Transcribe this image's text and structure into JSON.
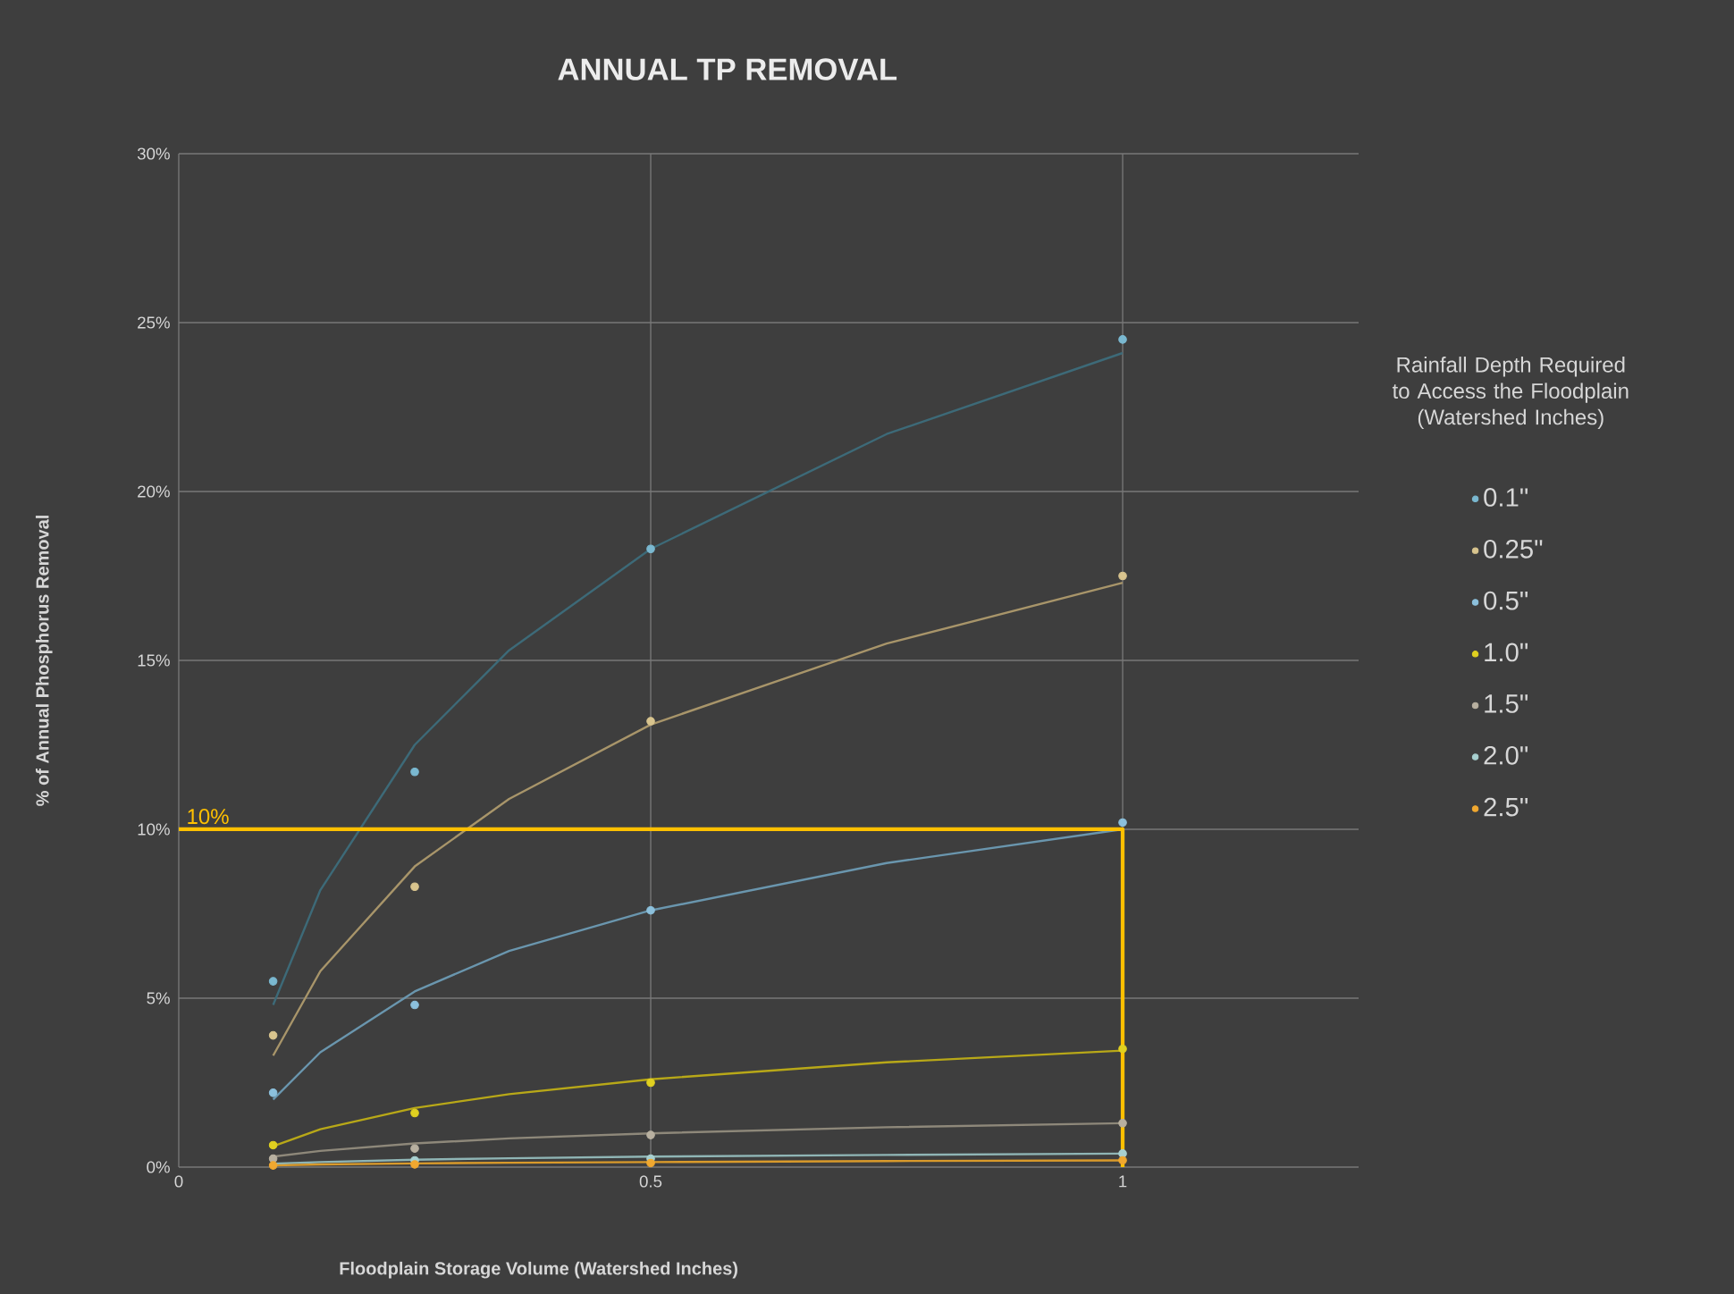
{
  "chart_data": {
    "type": "scatter",
    "title": "ANNUAL TP REMOVAL",
    "xlabel": "Floodplain Storage Volume (Watershed Inches)",
    "ylabel": "% of Annual Phosphorus Removal",
    "legend_title": "Rainfall Depth Required to Access the Floodplain (Watershed Inches)",
    "legend": "right",
    "grid": true,
    "marker": "circle",
    "xlim": [
      0,
      1.25
    ],
    "xticks": [
      0,
      0.5,
      1
    ],
    "ylim": [
      0,
      30
    ],
    "yticks": [
      {
        "value": 0,
        "label": "0%"
      },
      {
        "value": 5,
        "label": "5%"
      },
      {
        "value": 10,
        "label": "10%"
      },
      {
        "value": 15,
        "label": "15%"
      },
      {
        "value": 20,
        "label": "20%"
      },
      {
        "value": 25,
        "label": "25%"
      },
      {
        "value": 30,
        "label": "30%"
      }
    ],
    "annotations": [
      {
        "text": "10%",
        "x": 0,
        "y": 10
      }
    ],
    "series": [
      {
        "type": "line",
        "marker": "none",
        "color": "#3d6a78",
        "x": [
          0.1,
          0.15,
          0.25,
          0.35,
          0.5,
          0.75,
          1
        ],
        "values": [
          4.8,
          8.2,
          12.5,
          15.3,
          18.3,
          21.7,
          24.1
        ]
      },
      {
        "type": "line",
        "marker": "none",
        "color": "#a8956a",
        "x": [
          0.1,
          0.15,
          0.25,
          0.35,
          0.5,
          0.75,
          1
        ],
        "values": [
          3.3,
          5.8,
          8.9,
          10.9,
          13.1,
          15.5,
          17.3
        ]
      },
      {
        "type": "line",
        "marker": "none",
        "color": "#6a96ae",
        "x": [
          0.1,
          0.15,
          0.25,
          0.35,
          0.5,
          0.75,
          1
        ],
        "values": [
          2.0,
          3.4,
          5.2,
          6.4,
          7.6,
          9.0,
          10.0
        ]
      },
      {
        "type": "line",
        "marker": "none",
        "color": "#b8a818",
        "x": [
          0.1,
          0.15,
          0.25,
          0.35,
          0.5,
          0.75,
          1
        ],
        "values": [
          0.62,
          1.12,
          1.75,
          2.16,
          2.6,
          3.1,
          3.45
        ]
      },
      {
        "type": "line",
        "marker": "none",
        "color": "#8e887a",
        "x": [
          0.1,
          0.15,
          0.25,
          0.35,
          0.5,
          0.75,
          1
        ],
        "values": [
          0.31,
          0.48,
          0.7,
          0.85,
          1.0,
          1.18,
          1.3
        ]
      },
      {
        "type": "line",
        "marker": "none",
        "color": "#8fb5b5",
        "x": [
          0.1,
          0.15,
          0.25,
          0.35,
          0.5,
          0.75,
          1
        ],
        "values": [
          0.1,
          0.15,
          0.22,
          0.26,
          0.31,
          0.36,
          0.4
        ]
      },
      {
        "type": "line",
        "marker": "none",
        "color": "#d99a2b",
        "x": [
          0.1,
          0.15,
          0.25,
          0.35,
          0.5,
          0.75,
          1
        ],
        "values": [
          0.05,
          0.08,
          0.11,
          0.13,
          0.15,
          0.18,
          0.2
        ]
      },
      {
        "type": "line",
        "marker": "none",
        "color": "#ffc000",
        "x": [
          0,
          1,
          1
        ],
        "values": [
          10,
          10,
          0
        ]
      },
      {
        "name": "0.1\"",
        "color": "#7ab8d0",
        "x": [
          0.1,
          0.25,
          0.5,
          1
        ],
        "values": [
          5.5,
          11.7,
          18.3,
          24.5
        ]
      },
      {
        "name": "0.25\"",
        "color": "#d8c48e",
        "x": [
          0.1,
          0.25,
          0.5,
          1
        ],
        "values": [
          3.9,
          8.3,
          13.2,
          17.5
        ]
      },
      {
        "name": "0.5\"",
        "color": "#8cc0dc",
        "x": [
          0.1,
          0.25,
          0.5,
          1
        ],
        "values": [
          2.2,
          4.8,
          7.6,
          10.2
        ]
      },
      {
        "name": "1.0\"",
        "color": "#e0d020",
        "x": [
          0.1,
          0.25,
          0.5,
          1
        ],
        "values": [
          0.65,
          1.6,
          2.5,
          3.5
        ]
      },
      {
        "name": "1.5\"",
        "color": "#b8b0a0",
        "x": [
          0.1,
          0.25,
          0.5,
          1
        ],
        "values": [
          0.25,
          0.55,
          0.95,
          1.3
        ]
      },
      {
        "name": "2.0\"",
        "color": "#a8d0d0",
        "x": [
          0.25,
          0.5,
          1
        ],
        "values": [
          0.2,
          0.25,
          0.4
        ]
      },
      {
        "name": "2.5\"",
        "color": "#f0a830",
        "x": [
          0.1,
          0.25,
          0.5,
          1
        ],
        "values": [
          0.05,
          0.08,
          0.12,
          0.2
        ]
      }
    ]
  }
}
